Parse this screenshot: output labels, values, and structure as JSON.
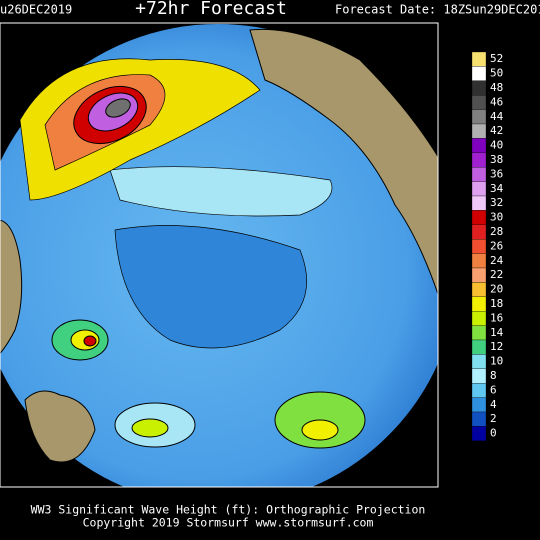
{
  "header": {
    "run_date": "u26DEC2019",
    "title": "+72hr Forecast",
    "forecast_date": "Forecast Date: 18ZSun29DEC201"
  },
  "legend": {
    "levels": [
      52,
      50,
      48,
      46,
      44,
      42,
      40,
      38,
      36,
      34,
      32,
      30,
      28,
      26,
      24,
      22,
      20,
      18,
      16,
      14,
      12,
      10,
      8,
      6,
      4,
      2,
      0
    ],
    "colors": [
      "#f5e070",
      "#ffffff",
      "#303030",
      "#505050",
      "#808080",
      "#b0b0b0",
      "#8000c0",
      "#a020d0",
      "#c060e0",
      "#e0a0f0",
      "#f0c8f8",
      "#d00000",
      "#e02020",
      "#f05030",
      "#f08040",
      "#f8a070",
      "#f8c030",
      "#f0f000",
      "#c8f000",
      "#80e040",
      "#40d080",
      "#80e0f0",
      "#b0f0ff",
      "#60c8f0",
      "#3090e0",
      "#1050c0",
      "#0000a0"
    ]
  },
  "footer": {
    "caption": "WW3 Significant Wave Height (ft): Orthographic Projection",
    "copyright": "Copyright 2019 Stormsurf www.stormsurf.com"
  }
}
